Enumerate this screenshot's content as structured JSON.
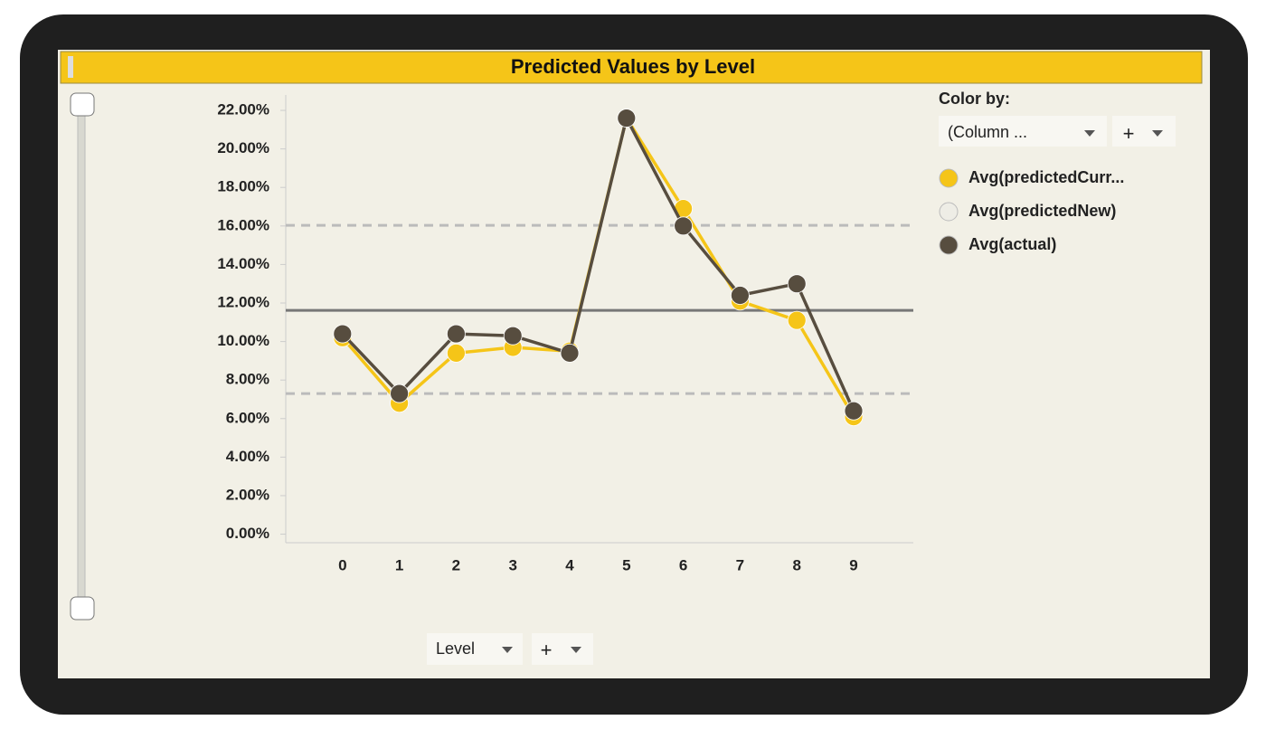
{
  "chart_data": {
    "type": "line",
    "title": "Predicted Values by Level",
    "categories": [
      "0",
      "1",
      "2",
      "3",
      "4",
      "5",
      "6",
      "7",
      "8",
      "9"
    ],
    "series": [
      {
        "name": "Avg(predictedCurr...",
        "color": "#f5c518",
        "values": [
          10.2,
          6.8,
          9.4,
          9.7,
          9.5,
          21.6,
          16.9,
          12.1,
          11.1,
          6.1
        ]
      },
      {
        "name": "Avg(predictedNew)",
        "color": "#eeede6",
        "values": [
          null,
          null,
          null,
          null,
          null,
          null,
          null,
          null,
          null,
          null
        ]
      },
      {
        "name": "Avg(actual)",
        "color": "#574d3f",
        "values": [
          10.4,
          7.3,
          10.4,
          10.3,
          9.4,
          21.6,
          16.0,
          12.4,
          13.0,
          6.4
        ]
      }
    ],
    "ylim": [
      -0.35,
      22.8
    ],
    "yticks": [
      {
        "value": 0,
        "label": "0.00%"
      },
      {
        "value": 2,
        "label": "2.00%"
      },
      {
        "value": 4,
        "label": "4.00%"
      },
      {
        "value": 6,
        "label": "6.00%"
      },
      {
        "value": 8,
        "label": "8.00%"
      },
      {
        "value": 10,
        "label": "10.00%"
      },
      {
        "value": 12,
        "label": "12.00%"
      },
      {
        "value": 14,
        "label": "14.00%"
      },
      {
        "value": 16,
        "label": "16.00%"
      },
      {
        "value": 18,
        "label": "18.00%"
      },
      {
        "value": 20,
        "label": "20.00%"
      },
      {
        "value": 22,
        "label": "22.00%"
      }
    ],
    "reference_lines": [
      {
        "value": 11.62,
        "style": "solid",
        "color": "#777777"
      },
      {
        "value": 16.03,
        "style": "dashed",
        "color": "#bbbbbb"
      },
      {
        "value": 7.3,
        "style": "dashed",
        "color": "#bbbbbb"
      }
    ],
    "legend_title": "Color by:",
    "color_by_selector": "(Column ...",
    "x_axis_selector": "Level",
    "add_button": "+"
  }
}
